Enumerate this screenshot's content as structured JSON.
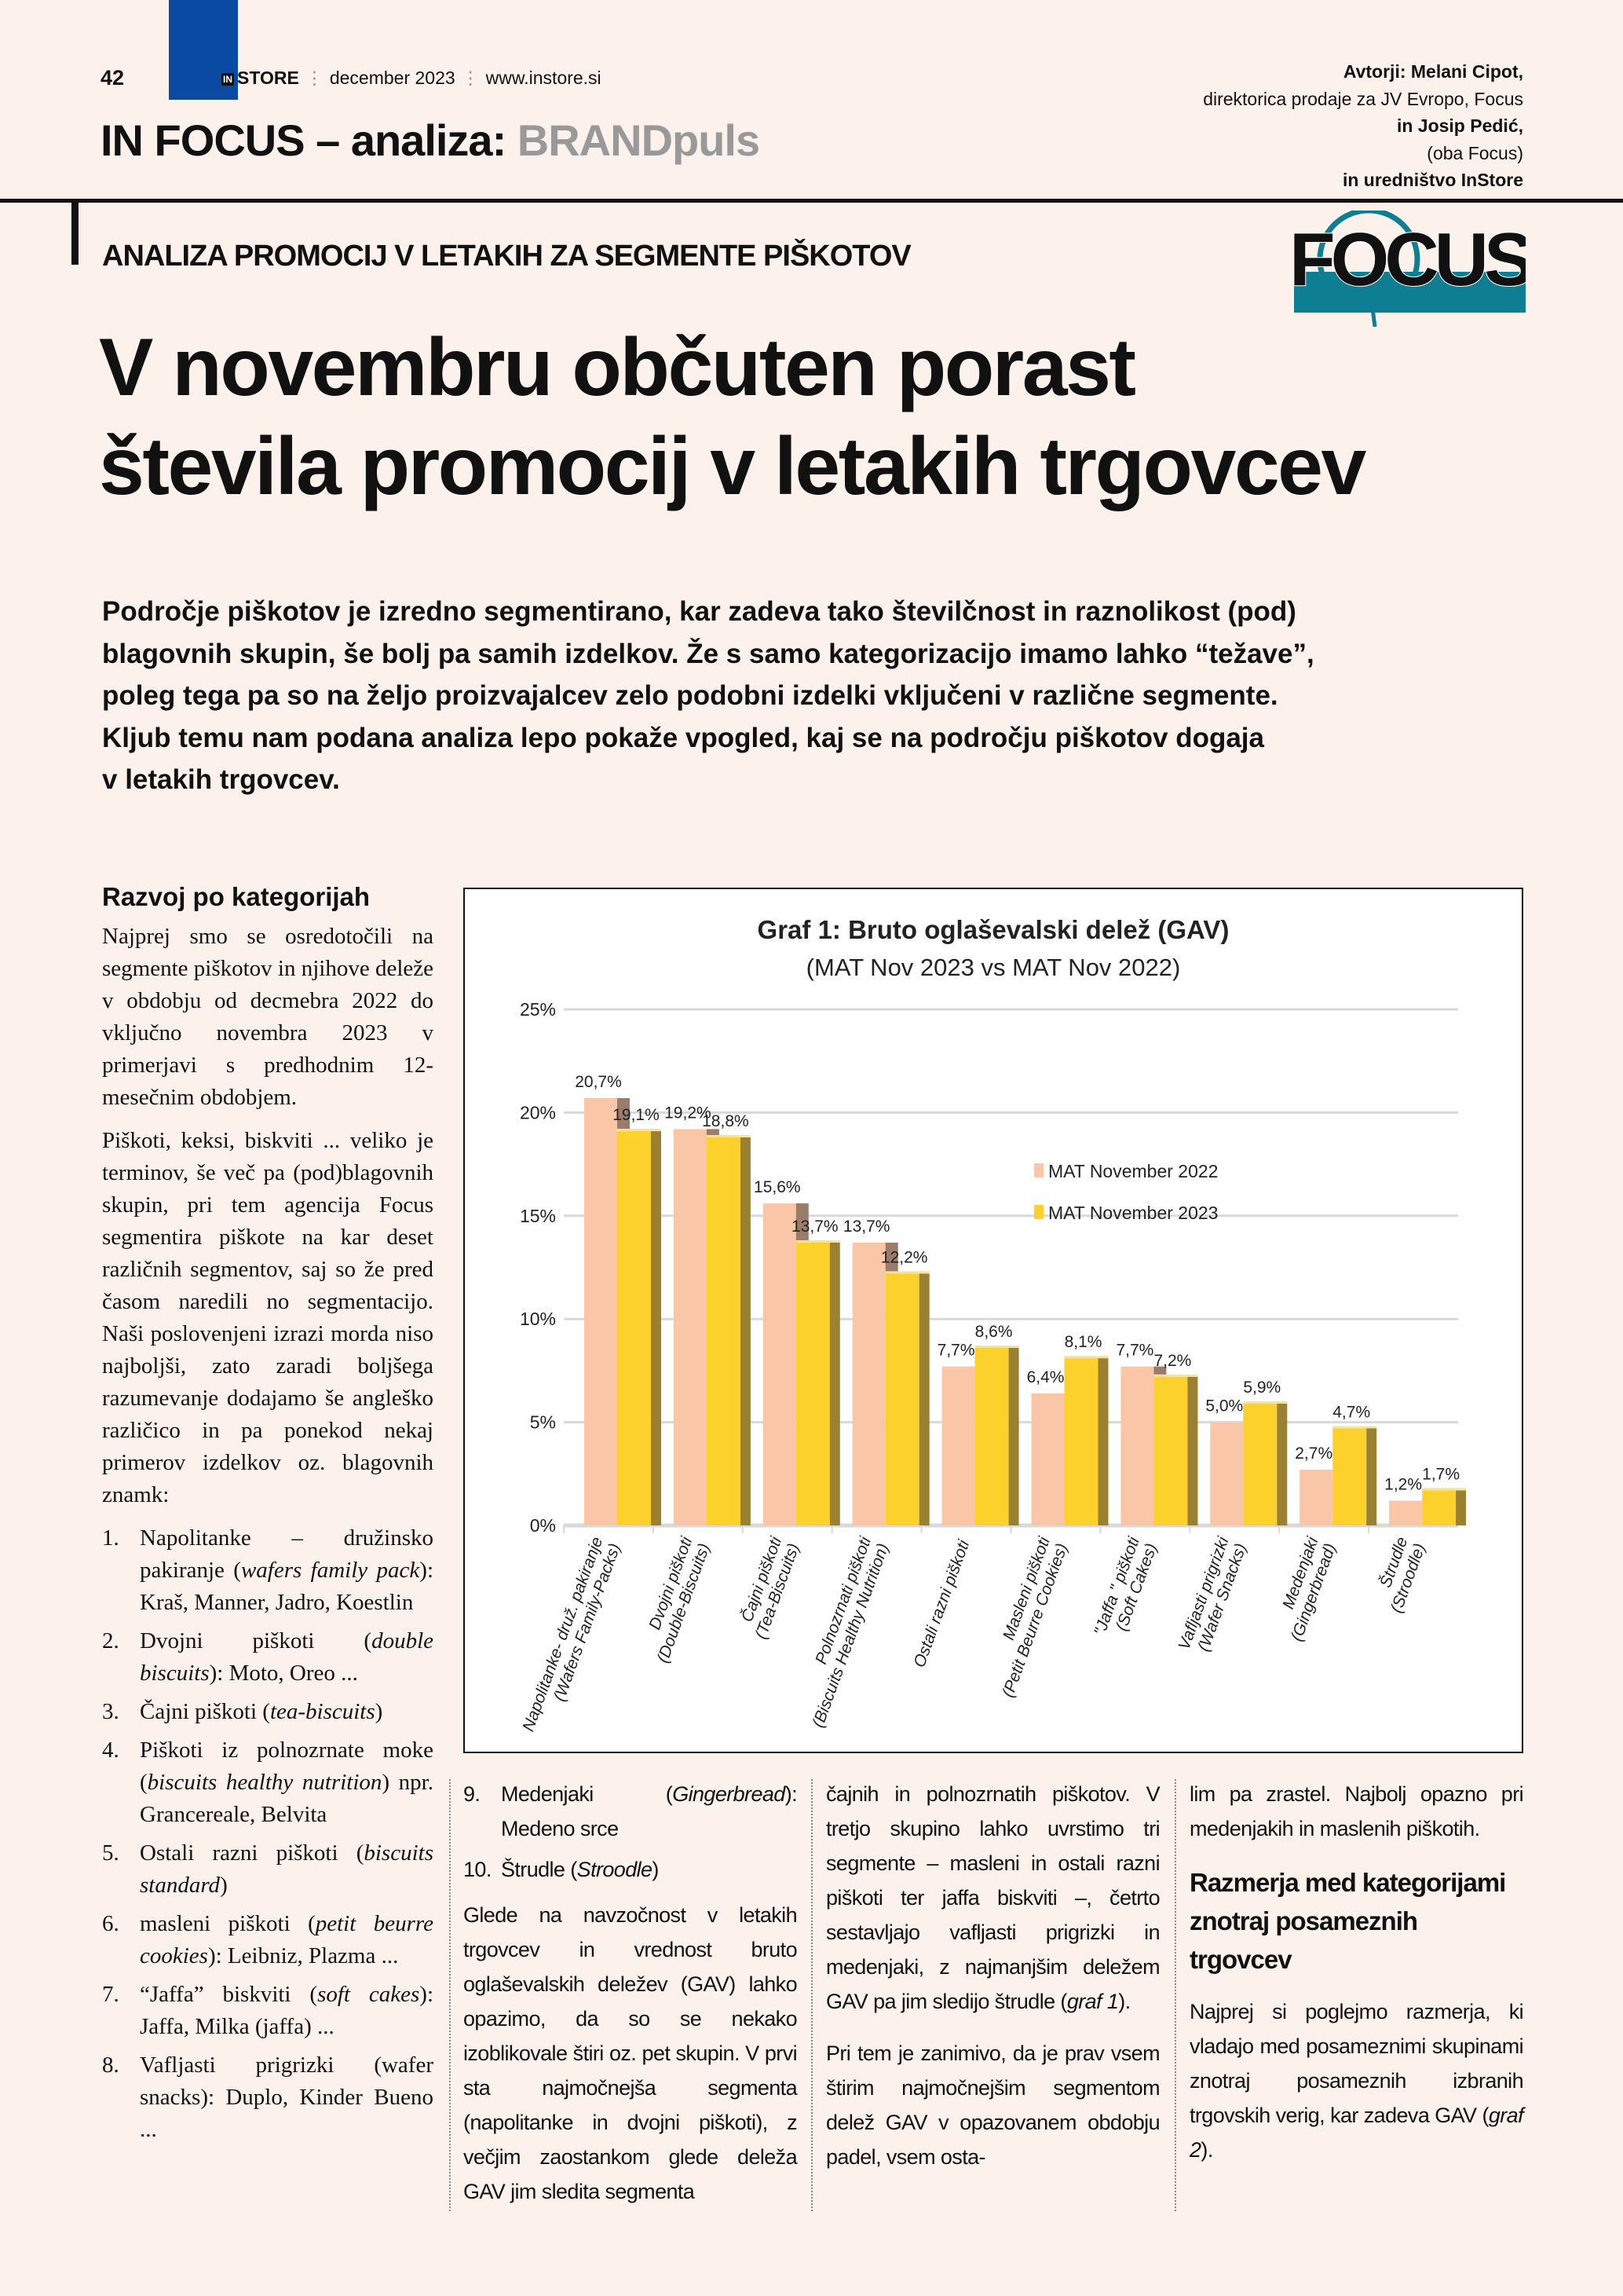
{
  "header": {
    "page_number": "42",
    "brand_in": "IN",
    "brand": "STORE",
    "issue": "december 2023",
    "website": "www.instore.si",
    "section_black": "IN FOCUS – analiza:",
    "section_gray": "BRANDpuls",
    "authors": [
      {
        "text": "Avtorji: Melani Cipot,",
        "bold": true
      },
      {
        "text": "direktorica prodaje za JV Evropo, Focus",
        "bold": false
      },
      {
        "text": "in Josip Pedić,",
        "bold": true
      },
      {
        "text": "(oba Focus)",
        "bold": false
      },
      {
        "text": "in uredništvo InStore",
        "bold": true
      }
    ]
  },
  "colors": {
    "brand_blue": "#0b4aa2",
    "logo_teal": "#0e7f93",
    "series_2022": "#f9c6a8",
    "series_2023": "#fdd12c"
  },
  "logo": {
    "text": "FOCUS"
  },
  "kicker": "ANALIZA PROMOCIJ V LETAKIH ZA SEGMENTE PIŠKOTOV",
  "headline": [
    "V novembru občuten porast",
    "števila promocij v letakih trgovcev"
  ],
  "lead": [
    "Področje piškotov je izredno segmentirano, kar zadeva tako številčnost in raznolikost (pod)",
    "blagovnih skupin, še bolj pa samih izdelkov. Že s samo kategorizacijo imamo lahko “težave”,",
    "poleg tega pa so na željo proizvajalcev zelo podobni izdelki vključeni v različne segmente.",
    "Kljub temu nam podana analiza lepo pokaže vpogled, kaj se na področju piškotov dogaja",
    "v letakih trgovcev."
  ],
  "left_column": {
    "heading": "Razvoj po kategorijah",
    "paragraphs": [
      "Najprej smo se osredotočili na segmente piškotov in njihove deleže v obdobju od decmebra 2022 do vključno novembra 2023 v primerjavi s predhodnim 12-mesečnim obdobjem.",
      "Piškoti, keksi, biskviti ... veliko je terminov, še več pa (pod)blagovnih skupin, pri tem agencija Focus segmentira piškote na kar deset različnih segmentov, saj so že pred časom naredili no segmentacijo. Naši poslovenjeni izrazi morda niso najboljši, zato zaradi boljšega razumevanje dodajamo še angleško različico in pa ponekod nekaj primerov izdelkov oz. blagovnih znamk:"
    ],
    "list": [
      {
        "n": "1.",
        "a": "Napolitanke – družinsko pakiranje (",
        "i": "wafers family pack",
        "b": "): Kraš, Manner, Jadro, Koestlin"
      },
      {
        "n": "2.",
        "a": "Dvojni piškoti (",
        "i": "double biscuits",
        "b": "): Moto, Oreo ..."
      },
      {
        "n": "3.",
        "a": "Čajni piškoti (",
        "i": "tea-biscuits",
        "b": ")"
      },
      {
        "n": "4.",
        "a": "Piškoti iz polnozrnate moke (",
        "i": "biscuits healthy nutrition",
        "b": ") npr. Grancereale, Belvita"
      },
      {
        "n": "5.",
        "a": "Ostali razni piškoti (",
        "i": "biscuits standard",
        "b": ")"
      },
      {
        "n": "6.",
        "a": "masleni piškoti (",
        "i": "petit beurre cookies",
        "b": "): Leibniz, Plazma ..."
      },
      {
        "n": "7.",
        "a": "“Jaffa” biskviti (",
        "i": "soft cakes",
        "b": "): Jaffa, Milka (jaffa) ..."
      },
      {
        "n": "8.",
        "a": "Vafljasti prigrizki (wafer snacks): Duplo, Kinder Bueno ...",
        "i": "",
        "b": ""
      }
    ]
  },
  "col1": {
    "list": [
      {
        "n": "9.",
        "a": "Medenjaki (",
        "i": "Gingerbread",
        "b": "): Medeno srce"
      },
      {
        "n": "10.",
        "a": "Štrudle (",
        "i": "Stroodle",
        "b": ")"
      }
    ],
    "paragraph": "Glede na navzočnost v letakih trgovcev in vrednost bruto oglaševalskih deležev (GAV) lahko opazimo, da so se nekako izoblikovale štiri oz. pet skupin. V prvi sta najmočnejša segmenta (napolitanke in dvojni piškoti), z večjim zaostankom glede deleža GAV jim sledita segmenta"
  },
  "col2": {
    "p1_a": "čajnih in polnozrnatih piškotov. V tretjo skupino lahko uvrstimo tri segmente – masleni in ostali razni piškoti ter jaffa biskviti –, četrto sestavljajo vafljasti prigrizki in medenjaki, z najmanjšim deležem GAV pa jim sledijo štrudle (",
    "p1_i": "graf 1",
    "p1_b": ").",
    "p2": "Pri tem je zanimivo, da je prav vsem štirim najmočnejšim segmentom delež GAV v opazovanem obdobju padel, vsem osta-"
  },
  "col3": {
    "p1": "lim pa zrastel. Najbolj opazno pri medenjakih in maslenih piškotih.",
    "heading": "Razmerja med kategorijami znotraj posameznih trgovcev",
    "p2_a": "Najprej si poglejmo razmerja, ki vladajo med posameznimi skupinami znotraj posameznih izbranih trgovskih verig, kar zadeva GAV (",
    "p2_i": "graf 2",
    "p2_b": ")."
  },
  "chart_data": {
    "type": "bar",
    "title": "Graf 1: Bruto oglaševalski delež (GAV)",
    "subtitle": "(MAT Nov 2023 vs MAT Nov 2022)",
    "categories": [
      [
        "Napolitanke- druž. pakiranje",
        "(Wafers Family-Packs)"
      ],
      [
        "Dvojni piškoti",
        "(Double-Biscuits)"
      ],
      [
        "Čajni piškoti",
        "(Tea-Biscuits)"
      ],
      [
        "Polnozrnati piškoti",
        "(Biscuits Healthy Nutrition)"
      ],
      [
        "Ostali razni piškoti",
        ""
      ],
      [
        "Masleni piškoti",
        "(Petit Beurre Cookies)"
      ],
      [
        "\"Jaffa \" piškoti",
        "(Soft Cakes)"
      ],
      [
        "Vafljasti prigrizki",
        "(Wafer Snacks)"
      ],
      [
        "Medenjaki",
        "(Gingerbread)"
      ],
      [
        "Štrudle",
        "(Stroodle)"
      ]
    ],
    "series": [
      {
        "name": "MAT November 2022",
        "color": "#f9c6a8",
        "values": [
          20.7,
          19.2,
          15.6,
          13.7,
          7.7,
          6.4,
          7.7,
          5.0,
          2.7,
          1.2
        ],
        "labels": [
          "20,7%",
          "19,2%",
          "15,6%",
          "13,7%",
          "7,7%",
          "6,4%",
          "7,7%",
          "5,0%",
          "2,7%",
          "1,2%"
        ]
      },
      {
        "name": "MAT November 2023",
        "color": "#fdd12c",
        "values": [
          19.1,
          18.8,
          13.7,
          12.2,
          8.6,
          8.1,
          7.2,
          5.9,
          4.7,
          1.7
        ],
        "labels": [
          "19,1%",
          "18,8%",
          "13,7%",
          "12,2%",
          "8,6%",
          "8,1%",
          "7,2%",
          "5,9%",
          "4,7%",
          "1,7%"
        ]
      }
    ],
    "yticks": [
      "0%",
      "5%",
      "10%",
      "15%",
      "20%",
      "25%"
    ],
    "ylim": [
      0,
      25
    ],
    "grid": true,
    "legend": "right"
  }
}
